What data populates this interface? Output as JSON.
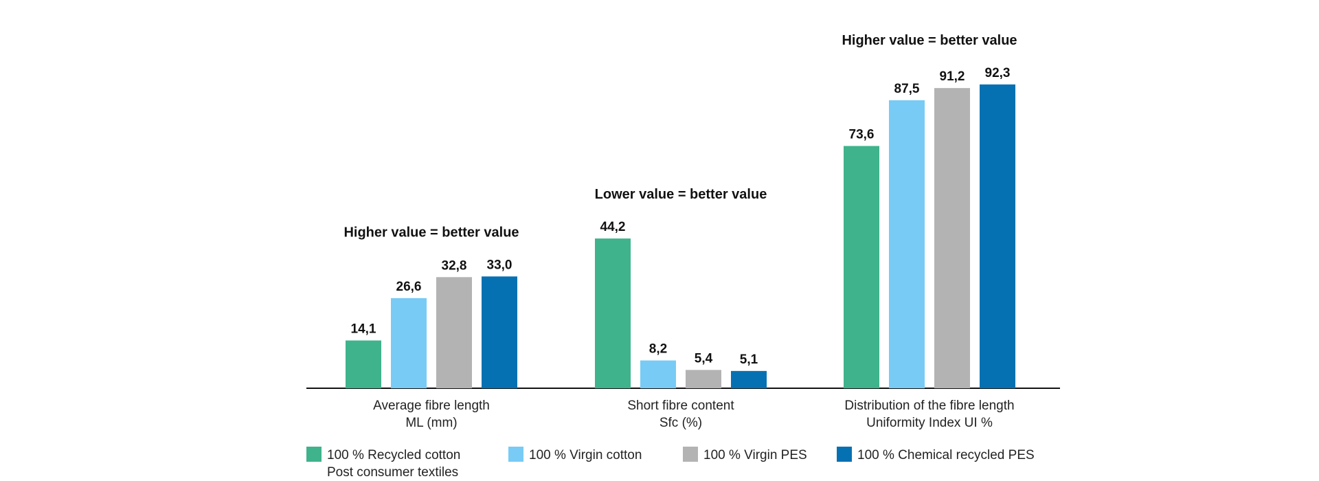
{
  "chart_data": {
    "type": "bar",
    "categories": [
      [
        "Average fibre length",
        "ML (mm)"
      ],
      [
        "Short fibre content",
        "Sfc (%)"
      ],
      [
        "Distribution of the fibre length",
        "Uniformity Index UI %"
      ]
    ],
    "annotations": [
      "Higher value = better value",
      "Lower value = better value",
      "Higher value = better value"
    ],
    "series": [
      {
        "name": [
          "100 % Recycled cotton",
          "Post consumer textiles"
        ],
        "color": "#3fb38b",
        "values": [
          14.1,
          44.2,
          73.6
        ],
        "labels": [
          "14,1",
          "44,2",
          "73,6"
        ]
      },
      {
        "name": [
          "100 % Virgin cotton"
        ],
        "color": "#77cbf5",
        "values": [
          26.6,
          8.2,
          87.5
        ],
        "labels": [
          "26,6",
          "8,2",
          "87,5"
        ]
      },
      {
        "name": [
          "100 % Virgin PES"
        ],
        "color": "#b3b3b3",
        "values": [
          32.8,
          5.4,
          91.2
        ],
        "labels": [
          "32,8",
          "5,4",
          "91,2"
        ]
      },
      {
        "name": [
          "100 % Chemical recycled PES"
        ],
        "color": "#0671b2",
        "values": [
          33.0,
          5.1,
          92.3
        ],
        "labels": [
          "33,0",
          "5,1",
          "92,3"
        ]
      }
    ],
    "legend_position": "bottom",
    "grid": false
  }
}
